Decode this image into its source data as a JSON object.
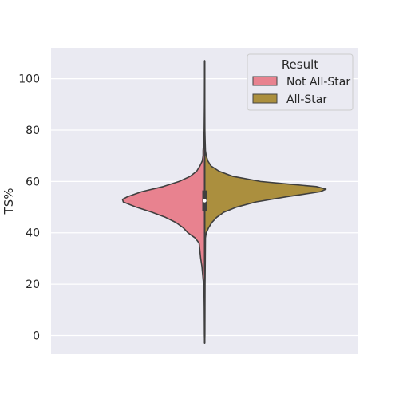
{
  "chart_data": {
    "type": "violin",
    "variant": "split",
    "title": "",
    "xlabel": "",
    "ylabel": "TS%",
    "ylim": [
      -7,
      112
    ],
    "yticks": [
      0,
      20,
      40,
      60,
      80,
      100
    ],
    "grid": true,
    "legend": {
      "title": "Result",
      "position": "top-right"
    },
    "series": [
      {
        "name": "Not All-Star",
        "color": "#e8828f",
        "side": "left",
        "density": [
          [
            -3,
            0
          ],
          [
            0,
            0.3
          ],
          [
            10,
            0.5
          ],
          [
            18,
            0.8
          ],
          [
            22,
            2
          ],
          [
            27,
            3.5
          ],
          [
            30,
            5
          ],
          [
            33,
            6
          ],
          [
            36,
            7
          ],
          [
            38,
            12
          ],
          [
            40,
            21
          ],
          [
            42,
            27
          ],
          [
            44,
            36
          ],
          [
            46,
            49
          ],
          [
            48,
            66
          ],
          [
            50,
            86
          ],
          [
            52,
            102
          ],
          [
            53,
            103
          ],
          [
            54,
            97
          ],
          [
            56,
            79
          ],
          [
            58,
            52
          ],
          [
            60,
            32
          ],
          [
            62,
            18
          ],
          [
            64,
            10
          ],
          [
            66,
            6
          ],
          [
            68,
            3
          ],
          [
            70,
            2
          ],
          [
            72,
            2
          ],
          [
            74,
            1.5
          ],
          [
            76,
            1
          ],
          [
            80,
            0.6
          ],
          [
            90,
            0.3
          ],
          [
            100,
            0.2
          ],
          [
            107,
            0
          ]
        ]
      },
      {
        "name": "All-Star",
        "color": "#ab8f3e",
        "side": "right",
        "density": [
          [
            -3,
            0
          ],
          [
            0,
            0.3
          ],
          [
            10,
            0.4
          ],
          [
            20,
            0.5
          ],
          [
            30,
            0.8
          ],
          [
            38,
            1
          ],
          [
            40,
            2
          ],
          [
            42,
            5
          ],
          [
            44,
            9
          ],
          [
            46,
            15
          ],
          [
            48,
            24
          ],
          [
            50,
            40
          ],
          [
            52,
            64
          ],
          [
            54,
            102
          ],
          [
            56,
            145
          ],
          [
            57,
            152
          ],
          [
            58,
            140
          ],
          [
            59,
            104
          ],
          [
            60,
            70
          ],
          [
            62,
            35
          ],
          [
            64,
            18
          ],
          [
            66,
            8
          ],
          [
            68,
            4
          ],
          [
            70,
            2
          ],
          [
            72,
            1
          ],
          [
            76,
            0.6
          ],
          [
            80,
            0.3
          ],
          [
            107,
            0
          ]
        ]
      }
    ],
    "box": {
      "q1": 48.5,
      "median": 52.5,
      "q3": 56.5,
      "whisker_low": -3,
      "whisker_high": 107
    }
  }
}
